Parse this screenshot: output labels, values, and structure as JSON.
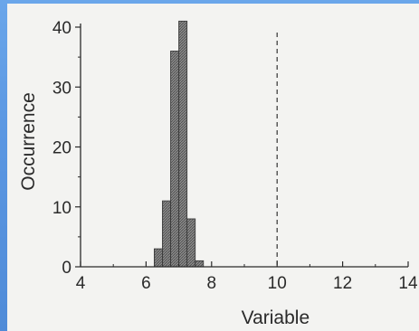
{
  "chart_data": {
    "type": "bar",
    "bin_width": 0.25,
    "x": [
      6.375,
      6.625,
      6.875,
      7.125,
      7.375,
      7.625
    ],
    "values": [
      3,
      11,
      36,
      41,
      8,
      1
    ],
    "xlabel": "Variable",
    "ylabel": "Occurrence",
    "xlim": [
      4,
      14
    ],
    "ylim": [
      0,
      40
    ],
    "xticks": [
      "4",
      "6",
      "8",
      "10",
      "12",
      "14"
    ],
    "yticks": [
      "0",
      "10",
      "20",
      "30",
      "40"
    ],
    "reference_line": {
      "x": 10,
      "style": "dashed"
    },
    "grid": false
  },
  "colors": {
    "bar_fill": "#7d7d7d",
    "axis": "#2a2a2a",
    "background": "#f3f3f1",
    "page_background": "#5b97e2"
  }
}
